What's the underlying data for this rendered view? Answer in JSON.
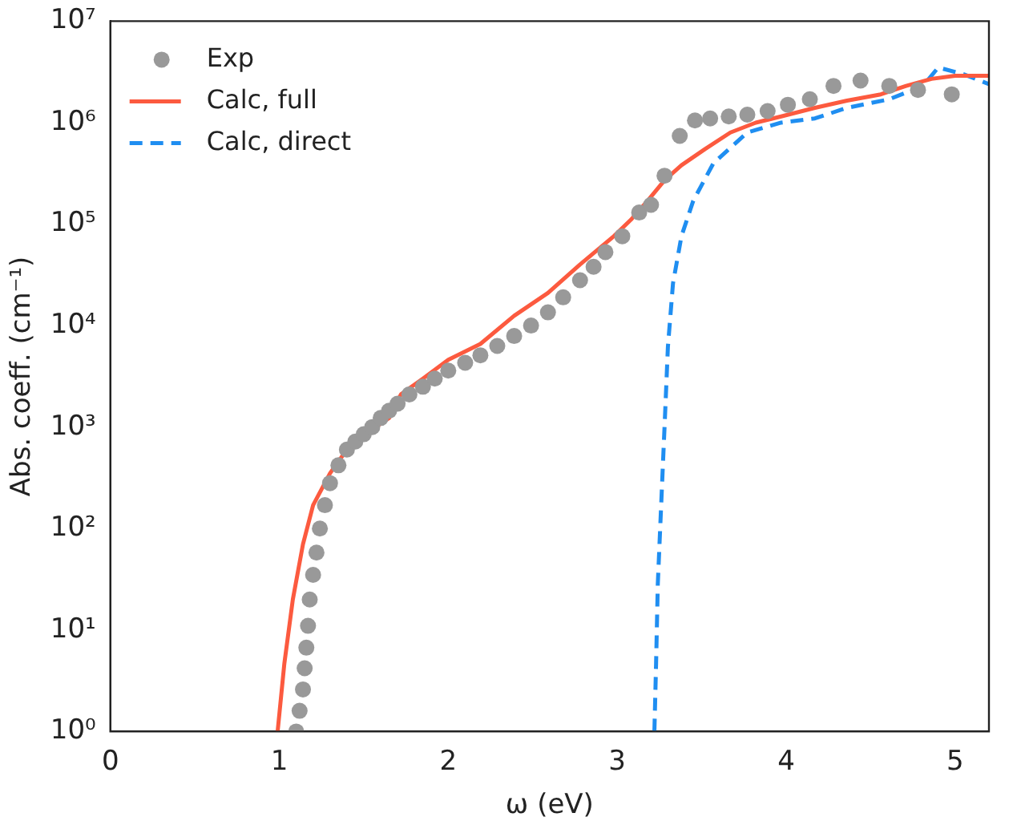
{
  "chart_data": {
    "type": "line",
    "xlabel": "ω (eV)",
    "ylabel": "Abs. coeff. (cm⁻¹)",
    "xlim": [
      0,
      5.2
    ],
    "xticks": [
      0,
      1,
      2,
      3,
      4,
      5
    ],
    "ylim": [
      1,
      10000000
    ],
    "yticks": [
      {
        "value": 1,
        "label": "10⁰"
      },
      {
        "value": 10,
        "label": "10¹"
      },
      {
        "value": 100,
        "label": "10²"
      },
      {
        "value": 1000,
        "label": "10³"
      },
      {
        "value": 10000,
        "label": "10⁴"
      },
      {
        "value": 100000,
        "label": "10⁵"
      },
      {
        "value": 1000000,
        "label": "10⁶"
      },
      {
        "value": 10000000,
        "label": "10⁷"
      }
    ],
    "log": "y",
    "grid": false,
    "legend": "top left",
    "series": [
      {
        "name": "Exp",
        "type": "scatter",
        "marker": "circle",
        "color": "#999999",
        "x": [
          1.1,
          1.12,
          1.14,
          1.15,
          1.16,
          1.17,
          1.18,
          1.2,
          1.22,
          1.24,
          1.27,
          1.3,
          1.35,
          1.4,
          1.45,
          1.5,
          1.55,
          1.6,
          1.65,
          1.7,
          1.77,
          1.85,
          1.92,
          2.0,
          2.1,
          2.19,
          2.29,
          2.39,
          2.49,
          2.59,
          2.68,
          2.78,
          2.86,
          2.93,
          3.03,
          3.13,
          3.2,
          3.28,
          3.37,
          3.46,
          3.55,
          3.66,
          3.77,
          3.89,
          4.01,
          4.14,
          4.28,
          4.44,
          4.61,
          4.78,
          4.98
        ],
        "values": [
          1,
          1.6,
          2.6,
          4.2,
          6.7,
          11,
          20,
          35,
          58,
          100,
          170,
          280,
          420,
          600,
          720,
          850,
          1000,
          1230,
          1450,
          1700,
          2100,
          2500,
          3000,
          3600,
          4300,
          5100,
          6300,
          7900,
          10000,
          13500,
          19000,
          28000,
          38000,
          53000,
          76000,
          130000,
          155000,
          300000,
          740000,
          1050000,
          1100000,
          1150000,
          1200000,
          1300000,
          1500000,
          1700000,
          2300000,
          2600000,
          2300000,
          2100000,
          1900000
        ]
      },
      {
        "name": "Calc, full",
        "line_style": "solid",
        "color": "#fc5a3f",
        "x": [
          0.99,
          1.03,
          1.08,
          1.14,
          1.2,
          1.3,
          1.4,
          1.55,
          1.65,
          1.72,
          1.85,
          2.0,
          2.19,
          2.39,
          2.59,
          2.78,
          2.98,
          3.08,
          3.18,
          3.28,
          3.38,
          3.52,
          3.67,
          3.82,
          3.97,
          4.17,
          4.36,
          4.56,
          4.71,
          4.86,
          5.0,
          5.2
        ],
        "values": [
          1,
          4.7,
          20,
          70,
          170,
          350,
          600,
          950,
          1230,
          2100,
          3000,
          4600,
          6600,
          12500,
          21000,
          40000,
          76000,
          110000,
          170000,
          270000,
          380000,
          550000,
          800000,
          1000000,
          1150000,
          1400000,
          1650000,
          1900000,
          2300000,
          2700000,
          2900000,
          2900000
        ]
      },
      {
        "name": "Calc, direct",
        "line_style": "dashed",
        "color": "#1f8ef1",
        "x": [
          3.22,
          3.23,
          3.24,
          3.26,
          3.28,
          3.3,
          3.33,
          3.38,
          3.45,
          3.57,
          3.77,
          3.97,
          4.17,
          4.36,
          4.61,
          4.81,
          4.9,
          5.05,
          5.2
        ],
        "values": [
          1,
          4.7,
          28,
          170,
          1000,
          6200,
          26000,
          76000,
          170000,
          400000,
          800000,
          1000000,
          1100000,
          1400000,
          1700000,
          2300000,
          3500000,
          3000000,
          2400000
        ]
      }
    ]
  }
}
